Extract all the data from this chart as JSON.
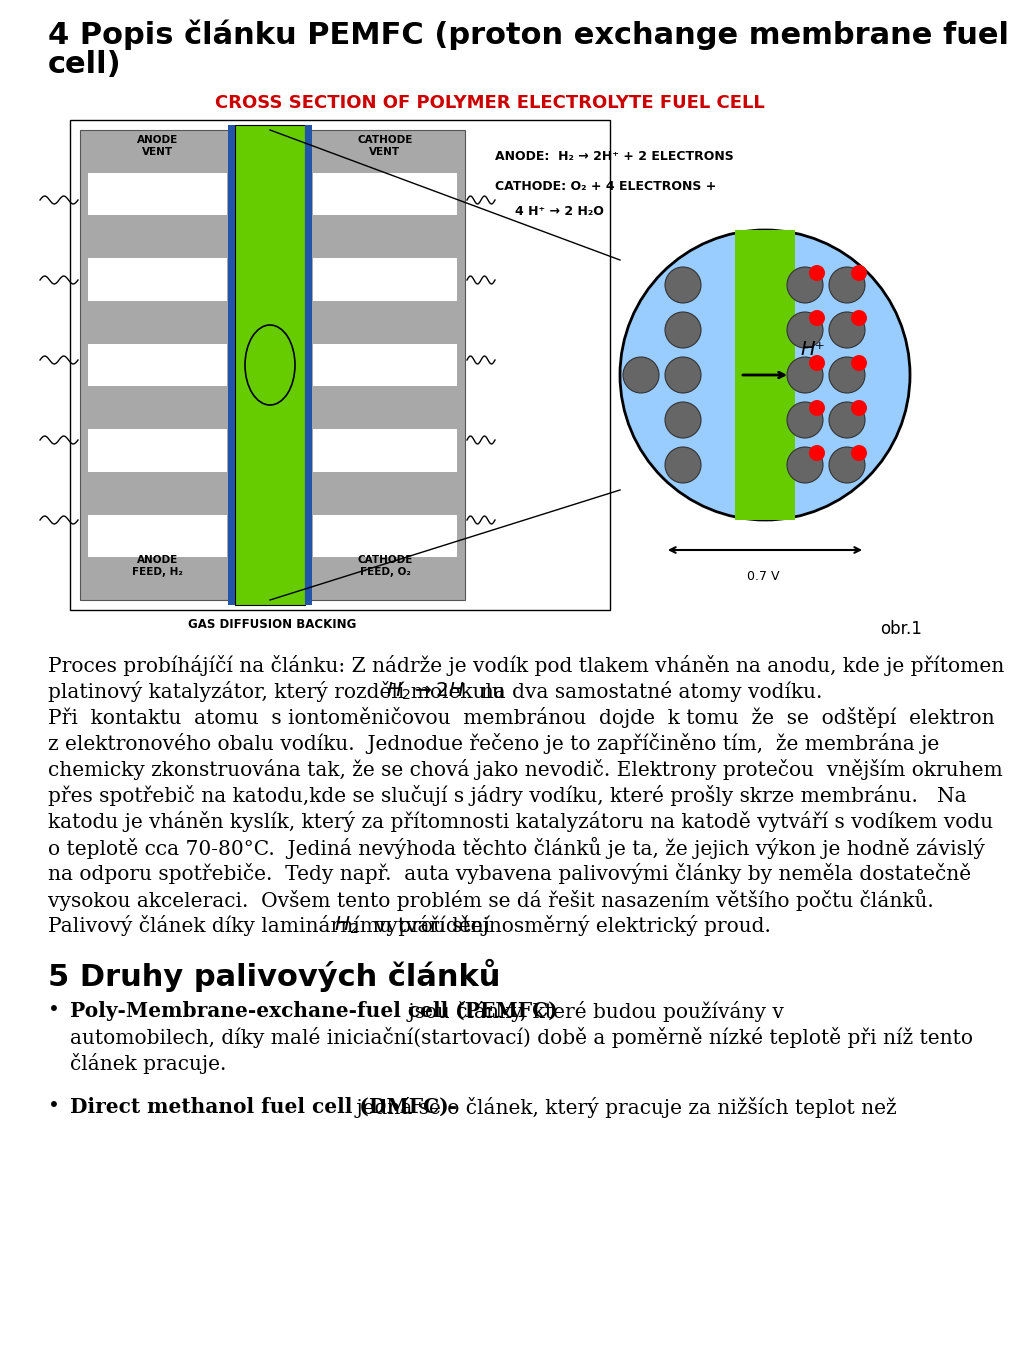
{
  "bg_color": "#ffffff",
  "title_line1": "4 Popis článku PEMFC (proton exchange membrane fuel",
  "title_line2": "cell)",
  "title_fontsize": 22,
  "section2_title": "5 Druhy palivových článků",
  "section2_fontsize": 22,
  "img_caption": "obr.1",
  "body_fontsize": 14.5,
  "image_label": "CROSS SECTION OF POLYMER ELECTROLYTE FUEL CELL",
  "image_label_color": "#cc0000",
  "image_label_fontsize": 13,
  "para1_line1": "Proces probíhájíčí na článku: Z nádrže je vodík pod tlakem vháněn na anodu, kde je přítomen",
  "para1_line2a": "platinový katalyzátor, který rozdělí molekulu ",
  "para1_line2math": "$H_2 \\rightarrow 2H$",
  "para1_line2b": "  na dva samostatné atomy vodíku.",
  "para2_lines": [
    "Při  kontaktu  atomu  s iontoměničovou  membránou  dojde  k tomu  že  se  odštěpí  elektron",
    "z elektronového obalu vodíku.  Jednodue řečeno je to zapříčiněno tím,  že membrána je",
    "chemicky zkonstruována tak, že se chová jako nevodič. Elektrony protečou  vnějším okruhem",
    "přes spotřebič na katodu,kde se slučují s jádry vodíku, které prošly skrze membránu.   Na",
    "katodu je vháněn kyslík, který za přítomnosti katalyzátoru na katodě vytváří s vodíkem vodu",
    "o teplotě cca 70-80°C.  Jediná nevýhoda těchto článků je ta, že jejich výkon je hodně závislý",
    "na odporu spotřebiče.  Tedy např.  auta vybavena palivovými články by neměla dostatečně",
    "vysokou akceleraci.  Ovšem tento problém se dá řešit nasazením většího počtu článků."
  ],
  "para3_a": "Palivový článek díky laminárnímu proudění ",
  "para3_math": "$H_2$",
  "para3_b": "  vytváří stejnosměrný elektrický proud.",
  "bullet1_bold": "Poly-Membrane-exchane-fuel cell (PEMFC)",
  "bullet1_line1_rest": " jsou články, které budou používány v",
  "bullet1_line2": "automobilech, díky malé iniciační(startovací) době a poměrně nízké teplotě při níž tento",
  "bullet1_line3": "článek pracuje.",
  "bullet2_bold": "Direct methanol fuel cell (DMFC)-",
  "bullet2_rest": " jedná se o článek, který pracuje za nižších teplot než"
}
